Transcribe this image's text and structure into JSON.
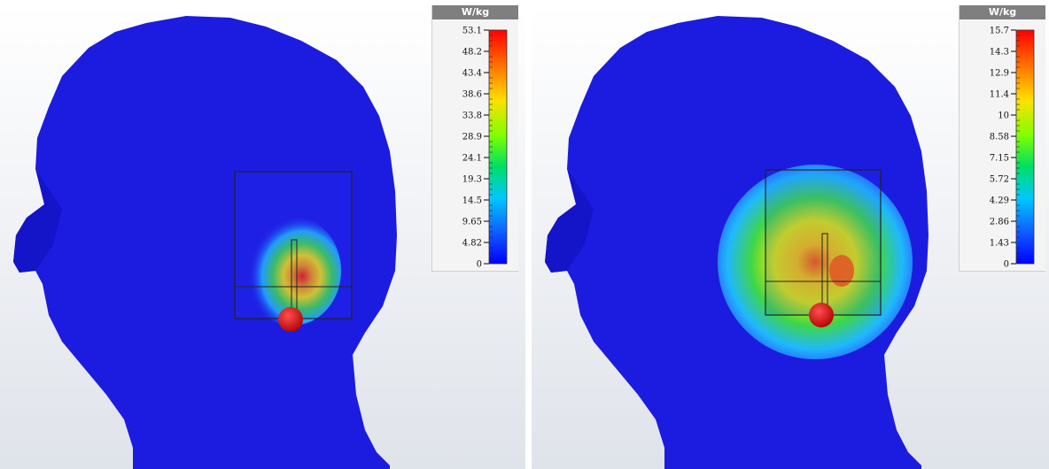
{
  "legend_left": {
    "unit": "W/kg",
    "ticks": [
      "53.1",
      "48.2",
      "43.4",
      "38.6",
      "33.8",
      "28.9",
      "24.1",
      "19.3",
      "14.5",
      "9.65",
      "4.82",
      "0"
    ]
  },
  "legend_right": {
    "unit": "W/kg",
    "ticks": [
      "15.7",
      "14.3",
      "12.9",
      "11.4",
      "10",
      "8.58",
      "7.15",
      "5.72",
      "4.29",
      "2.86",
      "1.43",
      "0"
    ]
  },
  "colors": {
    "head": "#1c1ce0",
    "head_dark": "#1212b8",
    "hot": "#ff2a00",
    "warm": "#ffe800",
    "mid": "#38e04a",
    "cool": "#20c8ff",
    "sphere": "#e01010"
  }
}
